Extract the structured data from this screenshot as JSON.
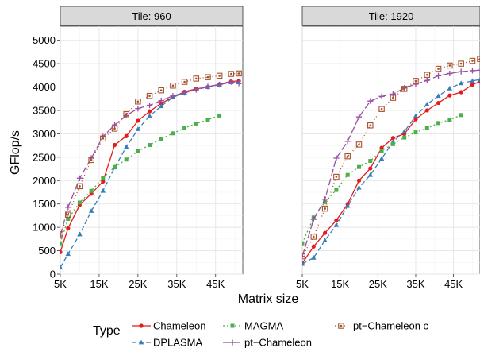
{
  "chart_data": {
    "type": "line",
    "xlabel": "Matrix size",
    "ylabel": "GFlop/s",
    "ylim": [
      0,
      5300
    ],
    "yticks": [
      0,
      500,
      1000,
      1500,
      2000,
      2500,
      3000,
      3500,
      4000,
      4500,
      5000
    ],
    "xticks": [
      5000,
      15000,
      25000,
      35000,
      45000
    ],
    "xtick_labels": [
      "5K",
      "15K",
      "25K",
      "35K",
      "45K"
    ],
    "legend_title": "Type",
    "legend_position": "bottom",
    "grid": true,
    "panels": [
      {
        "title": "Tile: 960",
        "xlim": [
          5000,
          52000
        ],
        "series": [
          {
            "name": "Chameleon",
            "color": "#e41a1c",
            "marker": "circle",
            "dash": "",
            "x": [
              5000,
              7000,
              10000,
              13000,
              16000,
              19000,
              22000,
              25000,
              28000,
              31000,
              34000,
              37000,
              40000,
              43000,
              46000,
              49000,
              51000
            ],
            "y": [
              470,
              980,
              1480,
              1720,
              1980,
              2760,
              2950,
              3280,
              3480,
              3650,
              3780,
              3900,
              3960,
              4000,
              4060,
              4120,
              4130
            ]
          },
          {
            "name": "DPLASMA",
            "color": "#377eb8",
            "marker": "triangle",
            "dash": "6,3",
            "x": [
              5000,
              7000,
              10000,
              13000,
              16000,
              19000,
              22000,
              25000,
              28000,
              31000,
              34000,
              37000,
              40000,
              43000,
              46000,
              49000,
              51000
            ],
            "y": [
              140,
              430,
              850,
              1350,
              1780,
              2280,
              2720,
              3100,
              3380,
              3590,
              3780,
              3880,
              3950,
              4000,
              4050,
              4100,
              4100
            ]
          },
          {
            "name": "MAGMA",
            "color": "#4daf4a",
            "marker": "square",
            "dash": "2,3",
            "x": [
              5000,
              7000,
              10000,
              13000,
              16000,
              19000,
              22000,
              25000,
              28000,
              31000,
              34000,
              37000,
              40000,
              43000,
              46000
            ],
            "y": [
              660,
              1180,
              1530,
              1780,
              2060,
              2290,
              2450,
              2630,
              2760,
              2890,
              3010,
              3120,
              3220,
              3300,
              3390
            ]
          },
          {
            "name": "pt−Chameleon",
            "color": "#984ea3",
            "marker": "cross",
            "dash": "9,3",
            "x": [
              5000,
              7000,
              10000,
              13000,
              16000,
              19000,
              22000,
              25000,
              28000,
              31000,
              34000,
              37000,
              40000,
              43000,
              46000,
              49000,
              51000
            ],
            "y": [
              820,
              1430,
              2050,
              2480,
              2940,
              3190,
              3390,
              3540,
              3610,
              3710,
              3810,
              3880,
              3940,
              4010,
              4050,
              4110,
              4080
            ]
          },
          {
            "name": "pt−Chameleon c",
            "color": "#a6532b",
            "marker": "dotsquare",
            "dash": "1,3",
            "x": [
              5000,
              7000,
              10000,
              13000,
              16000,
              19000,
              22000,
              25000,
              28000,
              31000,
              34000,
              37000,
              40000,
              43000,
              46000,
              49000,
              51000
            ],
            "y": [
              850,
              1270,
              1880,
              2440,
              2900,
              3110,
              3420,
              3690,
              3810,
              3930,
              4030,
              4110,
              4180,
              4210,
              4240,
              4280,
              4290
            ]
          }
        ]
      },
      {
        "title": "Tile: 1920",
        "xlim": [
          5000,
          52000
        ],
        "series": [
          {
            "name": "Chameleon",
            "color": "#e41a1c",
            "marker": "circle",
            "dash": "",
            "x": [
              5000,
              8000,
              11000,
              14000,
              17000,
              20000,
              23000,
              26000,
              29000,
              32000,
              35000,
              38000,
              41000,
              44000,
              47000,
              50000,
              52000
            ],
            "y": [
              230,
              590,
              880,
              1150,
              1500,
              2000,
              2260,
              2700,
              2910,
              3000,
              3310,
              3500,
              3660,
              3820,
              3890,
              4050,
              4120
            ]
          },
          {
            "name": "DPLASMA",
            "color": "#377eb8",
            "marker": "triangle",
            "dash": "6,3",
            "x": [
              5000,
              8000,
              11000,
              14000,
              17000,
              20000,
              23000,
              26000,
              29000,
              32000,
              35000,
              38000,
              41000,
              44000,
              47000,
              50000,
              52000
            ],
            "y": [
              220,
              350,
              720,
              1050,
              1460,
              1850,
              2120,
              2470,
              2830,
              3050,
              3380,
              3630,
              3810,
              3970,
              4080,
              4130,
              4160
            ]
          },
          {
            "name": "MAGMA",
            "color": "#4daf4a",
            "marker": "square",
            "dash": "2,3",
            "x": [
              5000,
              8000,
              11000,
              14000,
              17000,
              20000,
              23000,
              26000,
              29000,
              32000,
              35000,
              38000,
              41000,
              44000,
              47000
            ],
            "y": [
              660,
              1210,
              1540,
              1800,
              2120,
              2290,
              2420,
              2640,
              2780,
              2920,
              3030,
              3120,
              3230,
              3300,
              3400
            ]
          },
          {
            "name": "pt−Chameleon",
            "color": "#984ea3",
            "marker": "cross",
            "dash": "9,3",
            "x": [
              5000,
              8000,
              11000,
              14000,
              17000,
              20000,
              23000,
              26000,
              29000,
              32000,
              35000,
              38000,
              41000,
              44000,
              47000,
              50000,
              52000
            ],
            "y": [
              380,
              1170,
              1600,
              2480,
              2840,
              3360,
              3700,
              3800,
              3850,
              3980,
              4060,
              4140,
              4240,
              4290,
              4330,
              4350,
              4360
            ]
          },
          {
            "name": "pt−Chameleon c",
            "color": "#a6532b",
            "marker": "dotsquare",
            "dash": "1,3",
            "x": [
              5000,
              8000,
              11000,
              14000,
              17000,
              20000,
              23000,
              26000,
              29000,
              32000,
              35000,
              38000,
              41000,
              44000,
              47000,
              50000,
              52000
            ],
            "y": [
              380,
              800,
              1400,
              2080,
              2520,
              2770,
              3180,
              3530,
              3770,
              3960,
              4130,
              4260,
              4390,
              4460,
              4500,
              4560,
              4600
            ]
          }
        ]
      }
    ]
  }
}
